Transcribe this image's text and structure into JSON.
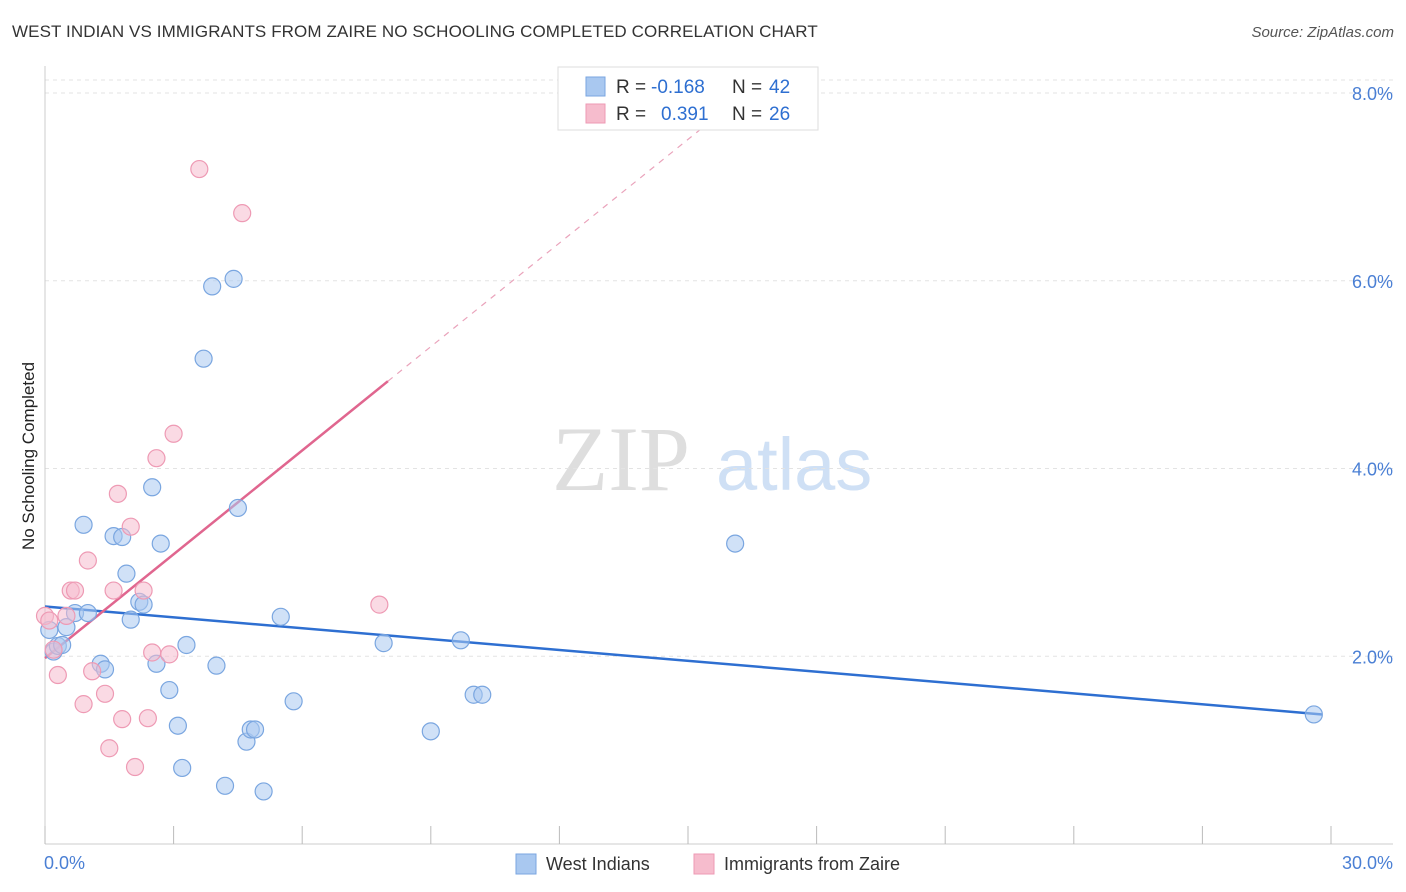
{
  "title": "WEST INDIAN VS IMMIGRANTS FROM ZAIRE NO SCHOOLING COMPLETED CORRELATION CHART",
  "source": "Source: ZipAtlas.com",
  "watermark": {
    "zip": "ZIP",
    "atlas": "atlas"
  },
  "legend_box": {
    "rows": [
      {
        "r_label": "R =",
        "r_value": "-0.168",
        "n_label": "N =",
        "n_value": "42"
      },
      {
        "r_label": "R =",
        "r_value": "0.391",
        "n_label": "N =",
        "n_value": "26"
      }
    ]
  },
  "colors": {
    "blue_fill": "#a9c8f0",
    "blue_stroke": "#7aa6e0",
    "blue_line": "#2e6fd1",
    "pink_fill": "#f6bccd",
    "pink_stroke": "#ee9ab4",
    "pink_line": "#e0668f",
    "tick": "#4a7fd4",
    "grid": "#e3e3e3"
  },
  "chart_data": {
    "type": "scatter",
    "title": "WEST INDIAN VS IMMIGRANTS FROM ZAIRE NO SCHOOLING COMPLETED CORRELATION CHART",
    "xlabel": "",
    "ylabel": "No Schooling Completed",
    "xlim": [
      0,
      30
    ],
    "ylim": [
      0,
      8
    ],
    "x_tick_labels": [
      "0.0%",
      "30.0%"
    ],
    "y_ticks": [
      2,
      4,
      6,
      8
    ],
    "y_tick_labels": [
      "2.0%",
      "4.0%",
      "6.0%",
      "8.0%"
    ],
    "grid": true,
    "legend_position": "bottom",
    "series": [
      {
        "name": "West Indians",
        "color": "#a9c8f0",
        "r": -0.168,
        "n": 42,
        "trend": {
          "x0": 0.0,
          "y0": 2.53,
          "x1": 29.8,
          "y1": 1.38
        },
        "points": [
          [
            0.1,
            2.28
          ],
          [
            0.2,
            2.05
          ],
          [
            0.3,
            2.11
          ],
          [
            0.4,
            2.12
          ],
          [
            0.5,
            2.31
          ],
          [
            0.9,
            3.4
          ],
          [
            0.7,
            2.46
          ],
          [
            1.0,
            2.46
          ],
          [
            1.3,
            1.92
          ],
          [
            1.4,
            1.86
          ],
          [
            1.6,
            3.28
          ],
          [
            1.8,
            3.27
          ],
          [
            1.9,
            2.88
          ],
          [
            2.0,
            2.39
          ],
          [
            2.2,
            2.58
          ],
          [
            2.3,
            2.55
          ],
          [
            2.5,
            3.8
          ],
          [
            2.6,
            1.92
          ],
          [
            2.7,
            3.2
          ],
          [
            2.9,
            1.64
          ],
          [
            3.1,
            1.26
          ],
          [
            3.2,
            0.81
          ],
          [
            3.3,
            2.12
          ],
          [
            3.7,
            5.17
          ],
          [
            3.9,
            5.94
          ],
          [
            4.0,
            1.9
          ],
          [
            4.2,
            0.62
          ],
          [
            4.4,
            6.02
          ],
          [
            4.5,
            3.58
          ],
          [
            4.7,
            1.09
          ],
          [
            4.8,
            1.22
          ],
          [
            4.9,
            1.22
          ],
          [
            5.1,
            0.56
          ],
          [
            5.5,
            2.42
          ],
          [
            5.8,
            1.52
          ],
          [
            7.9,
            2.14
          ],
          [
            9.0,
            1.2
          ],
          [
            9.7,
            2.17
          ],
          [
            10.0,
            1.59
          ],
          [
            10.2,
            1.59
          ],
          [
            16.1,
            3.2
          ],
          [
            29.6,
            1.38
          ]
        ]
      },
      {
        "name": "Immigrants from Zaire",
        "color": "#f6bccd",
        "r": 0.391,
        "n": 26,
        "trend": {
          "x0": 0.0,
          "y0": 1.98,
          "x1": 8.0,
          "y1": 4.93
        },
        "trend_dashed": {
          "x0": 8.0,
          "y0": 4.93,
          "x1": 15.8,
          "y1": 7.8
        },
        "points": [
          [
            0.0,
            2.43
          ],
          [
            0.2,
            2.07
          ],
          [
            0.3,
            1.8
          ],
          [
            0.5,
            2.43
          ],
          [
            0.6,
            2.7
          ],
          [
            0.7,
            2.7
          ],
          [
            0.9,
            1.49
          ],
          [
            1.0,
            3.02
          ],
          [
            1.1,
            1.84
          ],
          [
            1.4,
            1.6
          ],
          [
            1.5,
            1.02
          ],
          [
            1.6,
            2.7
          ],
          [
            1.7,
            3.73
          ],
          [
            1.8,
            1.33
          ],
          [
            2.0,
            3.38
          ],
          [
            2.1,
            0.82
          ],
          [
            2.3,
            2.7
          ],
          [
            2.4,
            1.34
          ],
          [
            2.5,
            2.04
          ],
          [
            2.6,
            4.11
          ],
          [
            2.9,
            2.02
          ],
          [
            3.0,
            4.37
          ],
          [
            3.6,
            7.19
          ],
          [
            4.6,
            6.72
          ],
          [
            7.8,
            2.55
          ],
          [
            0.1,
            2.38
          ]
        ]
      }
    ]
  },
  "bottom_legend": [
    "West Indians",
    "Immigrants from Zaire"
  ]
}
